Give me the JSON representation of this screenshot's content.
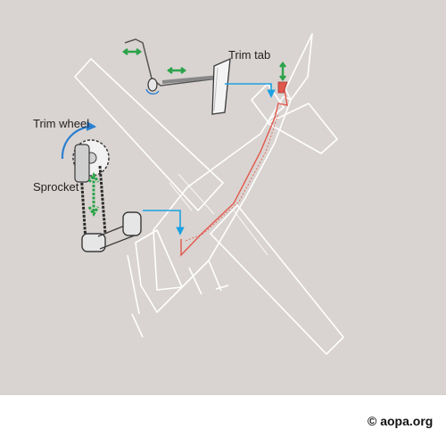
{
  "labels": {
    "trim_tab": "Trim tab",
    "trim_wheel": "Trim wheel",
    "sprocket": "Sprocket"
  },
  "footer": {
    "copyright": "© aopa.org"
  },
  "colors": {
    "background": "#d9d4d1",
    "aircraft_outline": "#ffffff",
    "cable": "#e2574c",
    "callout_arrow": "#1ba1e2",
    "motion_arrow": "#2ca34a",
    "rotation_arrow": "#2a7fd0",
    "mechanism": "#3a3a3a"
  }
}
